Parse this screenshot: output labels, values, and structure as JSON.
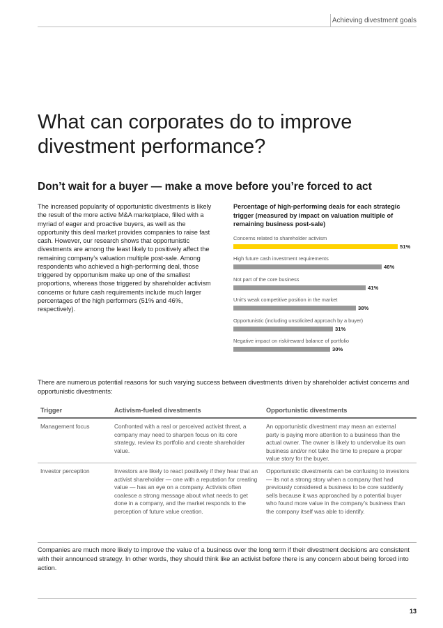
{
  "header": {
    "section": "Achieving divestment goals"
  },
  "title": "What can corporates do to improve divestment performance?",
  "subtitle": "Don’t wait for a buyer — make a move before you’re forced to act",
  "body_left": "The increased popularity of opportunistic divestments is likely the result of the more active M&A marketplace, filled with a myriad of eager and proactive buyers, as well as the opportunity this deal market provides companies to raise fast cash. However, our research shows that opportunistic divestments are among the least likely to positively affect the remaining company’s valuation multiple post-sale. Among respondents who achieved a high-performing deal, those triggered by opportunism make up one of the smallest proportions, whereas those triggered by shareholder activism concerns or future cash requirements include much larger percentages of the high performers (51% and 46%, respectively).",
  "chart_data": {
    "type": "bar",
    "orientation": "horizontal",
    "title": "Percentage of high-performing deals for each strategic trigger (measured by impact on valuation multiple of remaining business post-sale)",
    "categories": [
      "Concerns related to shareholder activism",
      "High future cash investment requirements",
      "Not part of the core business",
      "Unit’s weak competitive position in the market",
      "Opportunistic (including unsolicited approach by a buyer)",
      "Negative impact on risk/reward balance of portfolio"
    ],
    "values": [
      51,
      46,
      41,
      38,
      31,
      30
    ],
    "value_labels": [
      "51%",
      "46%",
      "41%",
      "38%",
      "31%",
      "30%"
    ],
    "highlight_index": 0,
    "colors": {
      "highlight": "#ffd200",
      "default": "#999999"
    },
    "xlim": [
      0,
      51
    ]
  },
  "intro": "There are numerous potential reasons for such varying success between divestments driven by shareholder activist concerns and opportunistic divestments:",
  "table": {
    "headers": [
      "Trigger",
      "Activism-fueled divestments",
      "Opportunistic divestments"
    ],
    "rows": [
      {
        "trigger": "Management focus",
        "activism": "Confronted with a real or perceived activist threat, a company may need to sharpen focus on its core strategy, review its portfolio and create shareholder value.",
        "opportunistic": "An opportunistic divestment may mean an external party is paying more attention to a business than the actual owner. The owner is likely to undervalue its own business and/or not take the time to prepare a proper value story for the buyer."
      },
      {
        "trigger": "Investor perception",
        "activism": "Investors are likely to react positively if they hear that an activist shareholder — one with a reputation for creating value — has an eye on a company. Activists often coalesce a strong message about what needs to get done in a company, and the market responds to the perception of future value creation.",
        "opportunistic": "Opportunistic divestments can be confusing to investors — its not a strong story when a company that had previously considered a business to be core suddenly sells because it was approached by a potential buyer who found more value in the company’s business than the company itself was able to identify."
      }
    ]
  },
  "outro": "Companies are much more likely to improve the value of a business over the long term if their divestment decisions are consistent with their announced strategy. In other words, they should think like an activist before there is any concern about being forced into action.",
  "footer": {
    "page_number": "13"
  }
}
